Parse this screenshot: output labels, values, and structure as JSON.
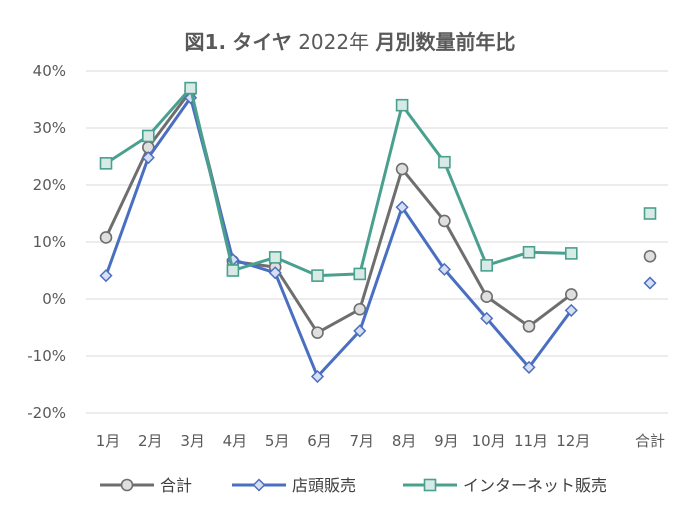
{
  "chart_data": {
    "type": "line",
    "title_bold_prefix": "図1.",
    "title_bold_middle": "タイヤ",
    "title_year": "2022年",
    "title_rest": "月別数量前年比",
    "categories": [
      "1月",
      "2月",
      "3月",
      "4月",
      "5月",
      "6月",
      "7月",
      "8月",
      "9月",
      "10月",
      "11月",
      "12月"
    ],
    "total_label": "合計",
    "yticks": [
      "40%",
      "30%",
      "20%",
      "10%",
      "0%",
      "-10%",
      "-20%"
    ],
    "ylim": [
      -20,
      40
    ],
    "grid": true,
    "legend_position": "bottom",
    "series": [
      {
        "name": "合計",
        "color": "#6e6e6e",
        "marker": "circle",
        "values": [
          10.8,
          26.6,
          36.5,
          6.6,
          5.6,
          -5.9,
          -1.8,
          22.8,
          13.7,
          0.4,
          -4.8,
          0.8
        ],
        "total": 7.5
      },
      {
        "name": "店頭販売",
        "color": "#4a6fc1",
        "marker": "diamond",
        "values": [
          4.1,
          24.8,
          35.3,
          6.9,
          4.6,
          -13.6,
          -5.6,
          16.1,
          5.2,
          -3.4,
          -12.0,
          -2.0
        ],
        "total": 2.8
      },
      {
        "name": "インターネット販売",
        "color": "#4aa08e",
        "marker": "square",
        "values": [
          23.8,
          28.6,
          37.0,
          5.0,
          7.3,
          4.1,
          4.4,
          34.0,
          24.0,
          5.9,
          8.2,
          8.0
        ],
        "total": 15.0
      }
    ]
  }
}
